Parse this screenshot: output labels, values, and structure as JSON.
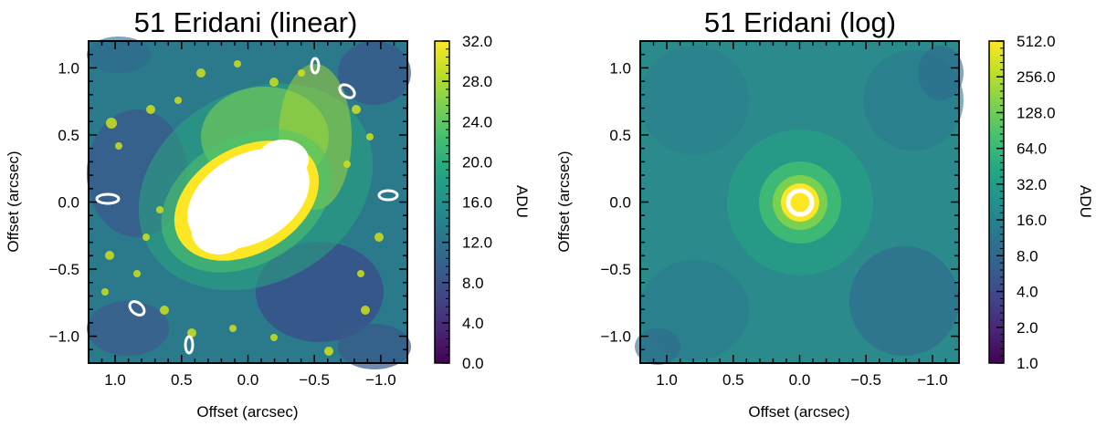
{
  "chart_data": [
    {
      "type": "heatmap",
      "title": "51 Eridani (linear)",
      "xlabel": "Offset (arcsec)",
      "ylabel": "Offset (arcsec)",
      "xlim": [
        1.2,
        -1.2
      ],
      "ylim": [
        -1.2,
        1.2
      ],
      "xticks": [
        {
          "value": 1.0,
          "label": "1.0"
        },
        {
          "value": 0.5,
          "label": "0.5"
        },
        {
          "value": 0.0,
          "label": "0.0"
        },
        {
          "value": -0.5,
          "label": "−0.5"
        },
        {
          "value": -1.0,
          "label": "−1.0"
        }
      ],
      "yticks": [
        {
          "value": 1.0,
          "label": "1.0"
        },
        {
          "value": 0.5,
          "label": "0.5"
        },
        {
          "value": 0.0,
          "label": "0.0"
        },
        {
          "value": -0.5,
          "label": "−0.5"
        },
        {
          "value": -1.0,
          "label": "−1.0"
        }
      ],
      "colormap": "viridis",
      "colorbar": {
        "label": "ADU",
        "scale": "linear",
        "range": [
          0,
          32
        ],
        "ticks": [
          {
            "value": 0,
            "label": "0.0"
          },
          {
            "value": 4,
            "label": "4.0"
          },
          {
            "value": 8,
            "label": "8.0"
          },
          {
            "value": 12,
            "label": "12.0"
          },
          {
            "value": 16,
            "label": "16.0"
          },
          {
            "value": 20,
            "label": "20.0"
          },
          {
            "value": 24,
            "label": "24.0"
          },
          {
            "value": 28,
            "label": "28.0"
          },
          {
            "value": 32,
            "label": "32.0"
          }
        ]
      },
      "description": "Saturated (white) elongated core within about 0.45 arcsec oriented along the diagonal, surrounded by speckle halo"
    },
    {
      "type": "heatmap",
      "title": "51 Eridani (log)",
      "xlabel": "Offset (arcsec)",
      "ylabel": "Offset (arcsec)",
      "xlim": [
        1.2,
        -1.2
      ],
      "ylim": [
        -1.2,
        1.2
      ],
      "xticks": [
        {
          "value": 1.0,
          "label": "1.0"
        },
        {
          "value": 0.5,
          "label": "0.5"
        },
        {
          "value": 0.0,
          "label": "0.0"
        },
        {
          "value": -0.5,
          "label": "−0.5"
        },
        {
          "value": -1.0,
          "label": "−1.0"
        }
      ],
      "yticks": [
        {
          "value": 1.0,
          "label": "1.0"
        },
        {
          "value": 0.5,
          "label": "0.5"
        },
        {
          "value": 0.0,
          "label": "0.0"
        },
        {
          "value": -0.5,
          "label": "−0.5"
        },
        {
          "value": -1.0,
          "label": "−1.0"
        }
      ],
      "colormap": "viridis",
      "colorbar": {
        "label": "ADU",
        "scale": "log2",
        "range": [
          1,
          512
        ],
        "ticks": [
          {
            "value": 1,
            "label": "1.0"
          },
          {
            "value": 2,
            "label": "2.0"
          },
          {
            "value": 4,
            "label": "4.0"
          },
          {
            "value": 8,
            "label": "8.0"
          },
          {
            "value": 16,
            "label": "16.0"
          },
          {
            "value": 32,
            "label": "32.0"
          },
          {
            "value": 64,
            "label": "64.0"
          },
          {
            "value": 128,
            "label": "128.0"
          },
          {
            "value": 256,
            "label": "256.0"
          },
          {
            "value": 512,
            "label": "512.0"
          }
        ]
      },
      "description": "Compact bright core with white saturated ring near 0,0 on a smooth teal background"
    }
  ]
}
